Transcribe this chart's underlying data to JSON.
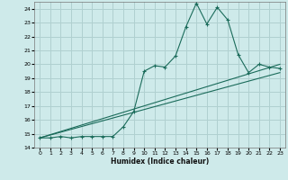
{
  "title": "",
  "xlabel": "Humidex (Indice chaleur)",
  "ylabel": "",
  "bg_color": "#ceeaea",
  "grid_color": "#b0d0d0",
  "line_color": "#1a6b5a",
  "xlim": [
    -0.5,
    23.5
  ],
  "ylim": [
    14,
    24.5
  ],
  "xticks": [
    0,
    1,
    2,
    3,
    4,
    5,
    6,
    7,
    8,
    9,
    10,
    11,
    12,
    13,
    14,
    15,
    16,
    17,
    18,
    19,
    20,
    21,
    22,
    23
  ],
  "yticks": [
    14,
    15,
    16,
    17,
    18,
    19,
    20,
    21,
    22,
    23,
    24
  ],
  "series1_x": [
    0,
    1,
    2,
    3,
    4,
    5,
    6,
    7,
    8,
    9,
    10,
    11,
    12,
    13,
    14,
    15,
    16,
    17,
    18,
    19,
    20,
    21,
    22,
    23
  ],
  "series1_y": [
    14.7,
    14.7,
    14.8,
    14.7,
    14.8,
    14.8,
    14.8,
    14.8,
    15.5,
    16.6,
    19.5,
    19.9,
    19.8,
    20.6,
    22.7,
    24.4,
    22.9,
    24.1,
    23.2,
    20.7,
    19.4,
    20.0,
    19.8,
    19.7
  ],
  "series2_x": [
    0,
    23
  ],
  "series2_y": [
    14.7,
    20.0
  ],
  "series3_x": [
    0,
    23
  ],
  "series3_y": [
    14.7,
    19.4
  ]
}
